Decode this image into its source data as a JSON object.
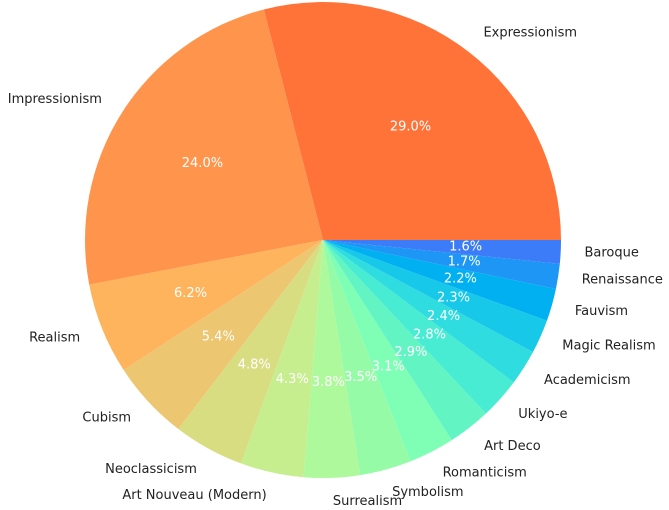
{
  "chart_data": {
    "type": "pie",
    "title": "",
    "start_angle_deg": 0,
    "direction": "counterclockwise",
    "slices": [
      {
        "label": "Expressionism",
        "value": 29.0,
        "pct_label": "29.0%",
        "color": "#ff7339"
      },
      {
        "label": "Impressionism",
        "value": 24.0,
        "pct_label": "24.0%",
        "color": "#ff954c"
      },
      {
        "label": "Realism",
        "value": 6.2,
        "pct_label": "6.2%",
        "color": "#feb45d"
      },
      {
        "label": "Cubism",
        "value": 5.4,
        "pct_label": "5.4%",
        "color": "#ecc670"
      },
      {
        "label": "Neoclassicism",
        "value": 4.8,
        "pct_label": "4.8%",
        "color": "#d8dd82"
      },
      {
        "label": "Art Nouveau (Modern)",
        "value": 4.3,
        "pct_label": "4.3%",
        "color": "#c6ee8e"
      },
      {
        "label": "Surrealism",
        "value": 3.8,
        "pct_label": "3.8%",
        "color": "#aef99b"
      },
      {
        "label": "Symbolism",
        "value": 3.5,
        "pct_label": "3.5%",
        "color": "#96fba7"
      },
      {
        "label": "Romanticism",
        "value": 3.1,
        "pct_label": "3.1%",
        "color": "#7effb5"
      },
      {
        "label": "Art Deco",
        "value": 2.9,
        "pct_label": "2.9%",
        "color": "#62f5c3"
      },
      {
        "label": "Ukiyo-e",
        "value": 2.8,
        "pct_label": "2.8%",
        "color": "#48ecd2"
      },
      {
        "label": "Academicism",
        "value": 2.4,
        "pct_label": "2.4%",
        "color": "#2fdcdf"
      },
      {
        "label": "Magic Realism",
        "value": 2.3,
        "pct_label": "2.3%",
        "color": "#18c8e9"
      },
      {
        "label": "Fauvism",
        "value": 2.2,
        "pct_label": "2.2%",
        "color": "#00b0f0"
      },
      {
        "label": "Renaissance",
        "value": 1.7,
        "pct_label": "1.7%",
        "color": "#1e96f5"
      },
      {
        "label": "Baroque",
        "value": 1.6,
        "pct_label": "1.6%",
        "color": "#3c7cf8"
      }
    ]
  }
}
